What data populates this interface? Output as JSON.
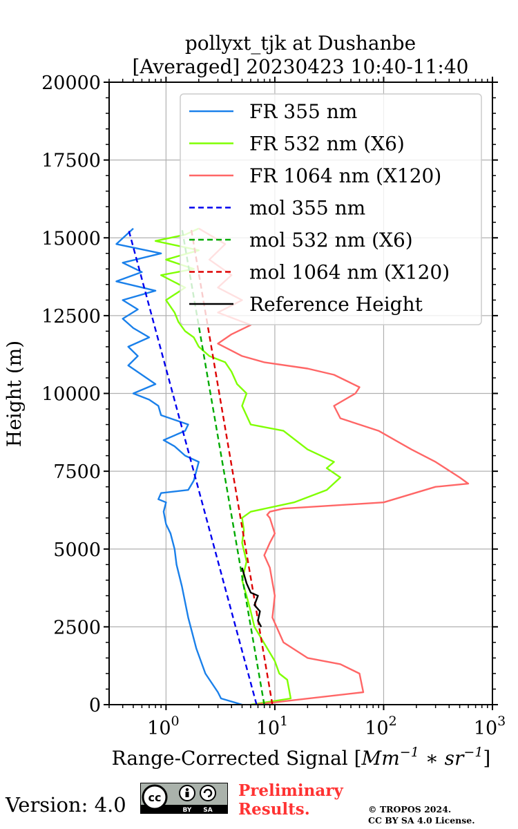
{
  "chart_data": {
    "type": "line",
    "title": [
      "pollyxt_tjk at Dushanbe",
      "[Averaged] 20230423 10:40-11:40"
    ],
    "xlabel": "Range-Corrected Signal [Mm^{-1}*sr^{-1}]",
    "xlabel_parts": {
      "prefix": "Range-Corrected Signal [",
      "mm": "Mm",
      "sup1": "−1",
      "mid": " ∗ ",
      "sr": "sr",
      "sup2": "−1",
      "suffix": "]"
    },
    "ylabel": "Height (m)",
    "xscale": "log",
    "xlim": [
      0.3,
      1000
    ],
    "ylim": [
      0,
      20000
    ],
    "xticks": [
      {
        "base": "10",
        "exp": "0",
        "value": 1
      },
      {
        "base": "10",
        "exp": "1",
        "value": 10
      },
      {
        "base": "10",
        "exp": "2",
        "value": 100
      },
      {
        "base": "10",
        "exp": "3",
        "value": 1000
      }
    ],
    "yticks": [
      "0",
      "2500",
      "5000",
      "7500",
      "10000",
      "12500",
      "15000",
      "17500",
      "20000"
    ],
    "grid": true,
    "legend_position": "upper right",
    "series": [
      {
        "name": "FR 355 nm",
        "color": "#1a80ea",
        "style": "solid",
        "x": [
          5.0,
          3.2,
          3.0,
          2.3,
          1.9,
          1.6,
          1.4,
          1.25,
          1.2,
          1.1,
          1.0,
          0.95,
          1.0,
          0.85,
          0.9,
          1.6,
          1.8,
          2.0,
          1.5,
          1.2,
          0.95,
          1.5,
          1.6,
          0.9,
          0.85,
          0.7,
          0.5,
          0.8,
          0.6,
          0.45,
          0.55,
          0.45,
          0.7,
          0.5,
          0.4,
          0.55,
          0.4,
          0.8,
          0.35,
          0.6,
          0.4,
          0.9,
          0.35,
          0.5
        ],
        "y": [
          0,
          200,
          400,
          1000,
          1800,
          2800,
          3800,
          4500,
          5000,
          5500,
          5800,
          6200,
          6500,
          6600,
          6800,
          6900,
          7200,
          7800,
          8000,
          8300,
          8500,
          8800,
          9000,
          9300,
          9600,
          9800,
          10000,
          10300,
          10600,
          10900,
          11200,
          11500,
          11800,
          12100,
          12400,
          12700,
          13000,
          13300,
          13600,
          13900,
          14200,
          14500,
          14800,
          15300
        ]
      },
      {
        "name": "FR 532 nm (X6)",
        "color": "#7fff00",
        "style": "solid",
        "x": [
          6.0,
          14.0,
          13.0,
          11.0,
          10.0,
          6.5,
          6.0,
          5.5,
          5.0,
          5.5,
          5.0,
          5.2,
          5.0,
          6.0,
          15.0,
          30.0,
          40.0,
          30.0,
          35.0,
          20.0,
          12.0,
          6.0,
          5.0,
          5.5,
          4.5,
          4.0,
          3.5,
          2.5,
          2.0,
          1.8,
          1.5,
          1.3,
          1.2,
          1.0,
          1.5,
          0.9,
          1.8,
          1.0,
          2.0,
          0.8,
          1.5,
          2.0
        ],
        "y": [
          0,
          200,
          800,
          1000,
          1400,
          2500,
          3000,
          3500,
          4000,
          4600,
          5200,
          5600,
          6000,
          6200,
          6500,
          6900,
          7300,
          7600,
          7800,
          8200,
          8800,
          9000,
          9600,
          10000,
          10300,
          10700,
          11000,
          11200,
          11500,
          11800,
          12000,
          12300,
          12600,
          13000,
          13400,
          13800,
          14000,
          14300,
          14600,
          14900,
          15100,
          15300
        ]
      },
      {
        "name": "FR 1064 nm (X120)",
        "color": "#ff6666",
        "style": "solid",
        "x": [
          6.5,
          65.0,
          60.0,
          40.0,
          20.0,
          12.0,
          9.5,
          10.0,
          9.0,
          8.0,
          9.0,
          10.0,
          9.0,
          8.5,
          9.0,
          12.0,
          100.0,
          300.0,
          600.0,
          500.0,
          300.0,
          180.0,
          90.0,
          40.0,
          35.0,
          55.0,
          60.0,
          35.0,
          20.0,
          8.0,
          5.0,
          3.0,
          4.0,
          6.0,
          3.0,
          5.0,
          3.0,
          4.0,
          2.5,
          3.5,
          2.0
        ],
        "y": [
          0,
          400,
          1000,
          1300,
          1500,
          2000,
          2800,
          3500,
          4400,
          4800,
          5200,
          5500,
          6000,
          6100,
          6200,
          6300,
          6500,
          7000,
          7100,
          7300,
          7800,
          8200,
          8800,
          9200,
          9600,
          10000,
          10200,
          10600,
          10800,
          11000,
          11200,
          11600,
          11900,
          12200,
          12600,
          13000,
          13400,
          13800,
          14300,
          14800,
          15300
        ]
      },
      {
        "name": "mol 355 nm",
        "color": "#0000ee",
        "style": "dashed",
        "x": [
          6.8,
          0.45
        ],
        "y": [
          0,
          15300
        ]
      },
      {
        "name": "mol 532 nm (X6)",
        "color": "#00aa00",
        "style": "dashed",
        "x": [
          8.0,
          1.4
        ],
        "y": [
          0,
          15300
        ]
      },
      {
        "name": "mol 1064 nm (X120)",
        "color": "#dd0000",
        "style": "dashed",
        "x": [
          9.5,
          1.7
        ],
        "y": [
          0,
          15300
        ]
      },
      {
        "name": "Reference Height",
        "color": "#000000",
        "style": "solid",
        "x": [
          7.5,
          7.0,
          7.3,
          6.5,
          7.0,
          6.0,
          5.5,
          5.0
        ],
        "y": [
          2500,
          2700,
          3000,
          3200,
          3500,
          3600,
          3900,
          4400
        ]
      }
    ]
  },
  "footer": {
    "version": "Version: 4.0",
    "cc_text_cc": "cc",
    "cc_by": "BY",
    "cc_sa": "SA",
    "preliminary_line1": "Preliminary",
    "preliminary_line2": "Results.",
    "copyright_line1": "© TROPOS 2024.",
    "copyright_line2": "CC BY SA 4.0 License."
  }
}
